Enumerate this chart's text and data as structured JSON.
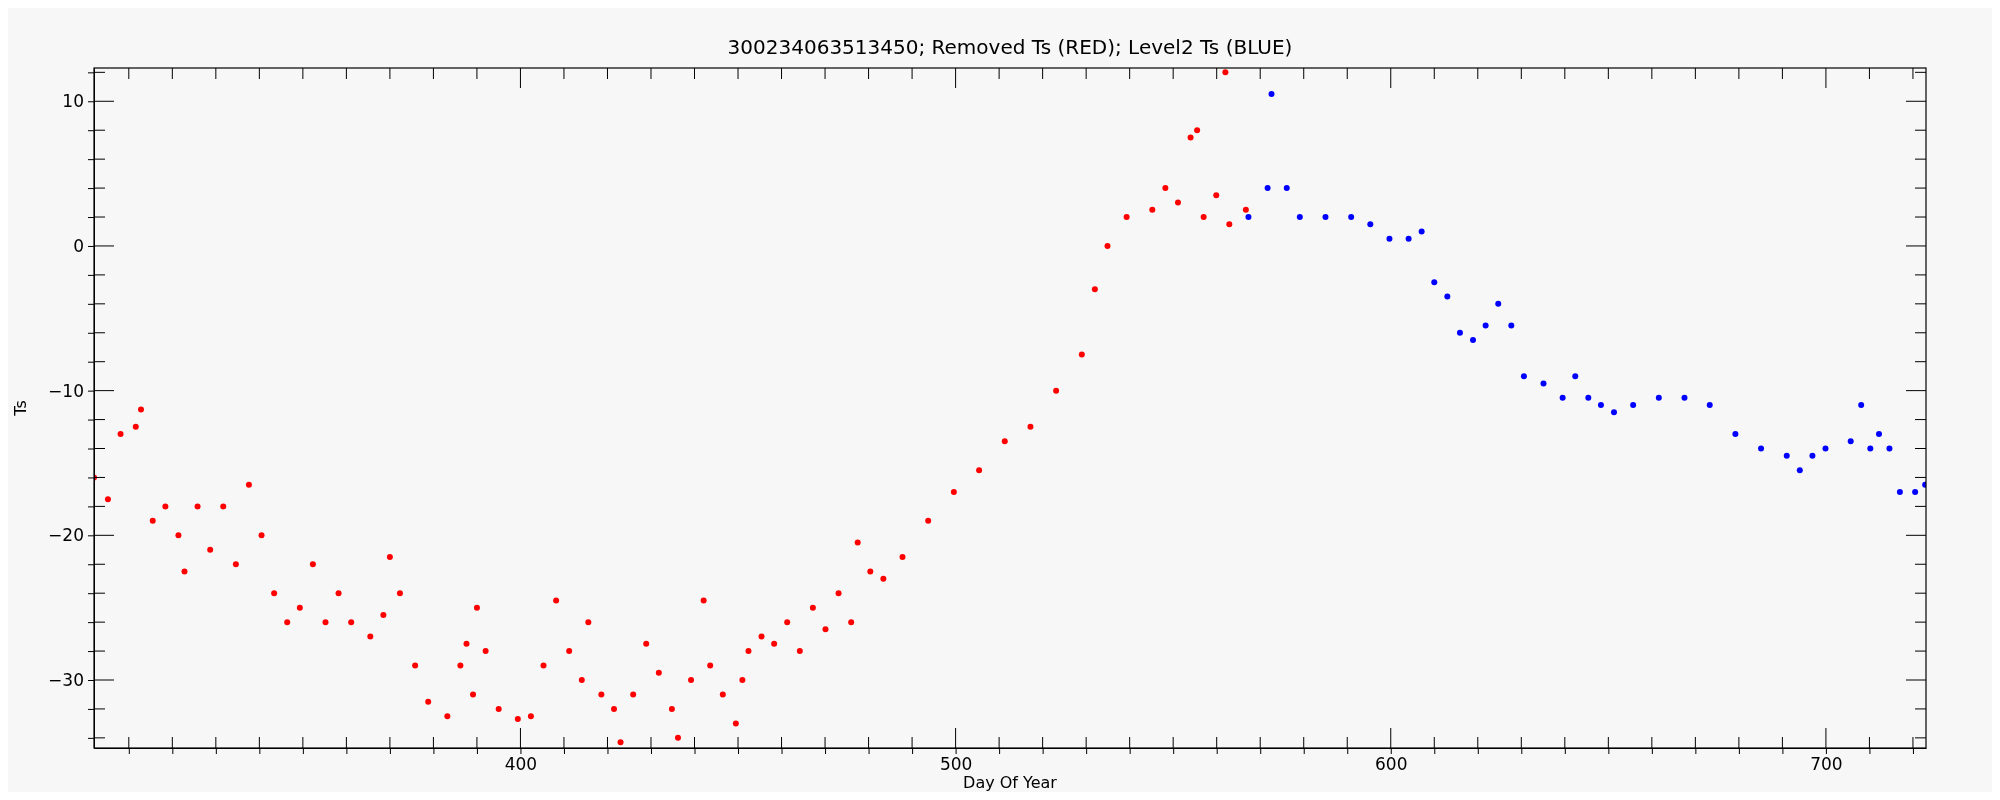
{
  "chart_data": {
    "type": "scatter",
    "title": "300234063513450; Removed Ts (RED); Level2 Ts (BLUE)",
    "xlabel": "Day Of Year",
    "ylabel": "Ts",
    "marker": "circle",
    "grid": false,
    "xlim": [
      302,
      723
    ],
    "ylim": [
      -34.7,
      12.3
    ],
    "xticks": [
      {
        "value": 310,
        "label": null
      },
      {
        "value": 320,
        "label": null
      },
      {
        "value": 330,
        "label": null
      },
      {
        "value": 340,
        "label": null
      },
      {
        "value": 350,
        "label": null
      },
      {
        "value": 360,
        "label": null
      },
      {
        "value": 370,
        "label": null
      },
      {
        "value": 380,
        "label": null
      },
      {
        "value": 390,
        "label": null
      },
      400,
      {
        "value": 410,
        "label": null
      },
      {
        "value": 420,
        "label": null
      },
      {
        "value": 430,
        "label": null
      },
      {
        "value": 440,
        "label": null
      },
      {
        "value": 450,
        "label": null
      },
      {
        "value": 460,
        "label": null
      },
      {
        "value": 470,
        "label": null
      },
      {
        "value": 480,
        "label": null
      },
      {
        "value": 490,
        "label": null
      },
      500,
      {
        "value": 510,
        "label": null
      },
      {
        "value": 520,
        "label": null
      },
      {
        "value": 530,
        "label": null
      },
      {
        "value": 540,
        "label": null
      },
      {
        "value": 550,
        "label": null
      },
      {
        "value": 560,
        "label": null
      },
      {
        "value": 570,
        "label": null
      },
      {
        "value": 580,
        "label": null
      },
      {
        "value": 590,
        "label": null
      },
      600,
      {
        "value": 610,
        "label": null
      },
      {
        "value": 620,
        "label": null
      },
      {
        "value": 630,
        "label": null
      },
      {
        "value": 640,
        "label": null
      },
      {
        "value": 650,
        "label": null
      },
      {
        "value": 660,
        "label": null
      },
      {
        "value": 670,
        "label": null
      },
      {
        "value": 680,
        "label": null
      },
      {
        "value": 690,
        "label": null
      },
      700,
      {
        "value": 710,
        "label": null
      },
      {
        "value": 720,
        "label": null
      }
    ],
    "yticks": [
      {
        "value": -34,
        "label": null
      },
      {
        "value": -32,
        "label": null
      },
      -30,
      {
        "value": -28,
        "label": null
      },
      {
        "value": -26,
        "label": null
      },
      {
        "value": -24,
        "label": null
      },
      {
        "value": -22,
        "label": null
      },
      -20,
      {
        "value": -18,
        "label": null
      },
      {
        "value": -16,
        "label": null
      },
      {
        "value": -14,
        "label": null
      },
      {
        "value": -12,
        "label": null
      },
      -10,
      {
        "value": -8,
        "label": null
      },
      {
        "value": -6,
        "label": null
      },
      {
        "value": -4,
        "label": null
      },
      {
        "value": -2,
        "label": null
      },
      0,
      {
        "value": 2,
        "label": null
      },
      {
        "value": 4,
        "label": null
      },
      {
        "value": 6,
        "label": null
      },
      {
        "value": 8,
        "label": null
      },
      10,
      {
        "value": 12,
        "label": null
      }
    ],
    "series": [
      {
        "color": "#ff0000",
        "x": [
          302,
          305.2,
          308.1,
          311.6,
          312.8,
          315.5,
          318.4,
          321.4,
          322.8,
          325.8,
          328.7,
          331.7,
          334.6,
          337.6,
          340.5,
          343.4,
          346.4,
          349.3,
          352.3,
          355.2,
          358.2,
          361.1,
          365.5,
          368.5,
          370,
          372.3,
          375.8,
          378.8,
          383.2,
          386.2,
          387.6,
          389.1,
          390,
          392,
          395,
          399.4,
          402.4,
          405.3,
          408.2,
          411.2,
          414.1,
          415.6,
          418.6,
          421.5,
          423,
          425.9,
          428.9,
          431.8,
          434.8,
          436.2,
          439.2,
          442.1,
          443.6,
          446.5,
          449.5,
          451,
          452.4,
          455.4,
          458.3,
          461.3,
          464.2,
          467.2,
          470.1,
          473.1,
          476,
          477.5,
          480.4,
          483.4,
          487.8,
          493.7,
          499.6,
          505.4,
          511.3,
          517.2,
          523.1,
          529,
          532,
          534.9,
          539.3,
          545.2,
          548.2,
          551.1,
          554,
          555.5,
          557,
          559.9,
          562,
          562.9,
          566.7
        ],
        "values": [
          -16,
          -17.5,
          -13,
          -12.5,
          -11.3,
          -19,
          -18,
          -20,
          -22.5,
          -18,
          -21,
          -18,
          -22,
          -16.5,
          -20,
          -24,
          -26,
          -25,
          -22,
          -26,
          -24,
          -26,
          -27,
          -25.5,
          -21.5,
          -24,
          -29,
          -31.5,
          -32.5,
          -29,
          -27.5,
          -31,
          -25,
          -28,
          -32,
          -32.7,
          -32.5,
          -29,
          -24.5,
          -28,
          -30,
          -26,
          -31,
          -32,
          -34.3,
          -31,
          -27.5,
          -29.5,
          -32,
          -34,
          -30,
          -24.5,
          -29,
          -31,
          -33,
          -30,
          -28,
          -27,
          -27.5,
          -26,
          -28,
          -25,
          -26.5,
          -24,
          -26,
          -20.5,
          -22.5,
          -23,
          -21.5,
          -19,
          -17,
          -15.5,
          -13.5,
          -12.5,
          -10,
          -7.5,
          -3,
          0,
          2,
          2.5,
          4,
          3,
          7.5,
          8,
          2,
          3.5,
          12,
          1.5,
          2.5
        ]
      },
      {
        "color": "#0000ff",
        "x": [
          567.3,
          571.7,
          572.6,
          576.1,
          579.1,
          585,
          590.9,
          595.3,
          599.7,
          604.1,
          607.1,
          610,
          613,
          615.9,
          618.9,
          621.8,
          624.7,
          627.7,
          630.6,
          635.1,
          639.5,
          642.4,
          645.4,
          648.3,
          651.3,
          655.7,
          661.6,
          667.5,
          673.3,
          679.2,
          685.1,
          691,
          694,
          696.9,
          699.9,
          705.7,
          708.1,
          710.2,
          712.2,
          714.6,
          717,
          720.5,
          722.8
        ],
        "values": [
          2,
          4,
          10.5,
          4,
          2,
          2,
          2,
          1.5,
          0.5,
          0.5,
          1,
          -2.5,
          -3.5,
          -6,
          -6.5,
          -5.5,
          -4,
          -5.5,
          -9,
          -9.5,
          -10.5,
          -9,
          -10.5,
          -11,
          -11.5,
          -11,
          -10.5,
          -10.5,
          -11,
          -13,
          -14,
          -14.5,
          -15.5,
          -14.5,
          -14,
          -13.5,
          -11,
          -14,
          -13,
          -14,
          -17,
          -17,
          -16.5
        ]
      }
    ]
  }
}
